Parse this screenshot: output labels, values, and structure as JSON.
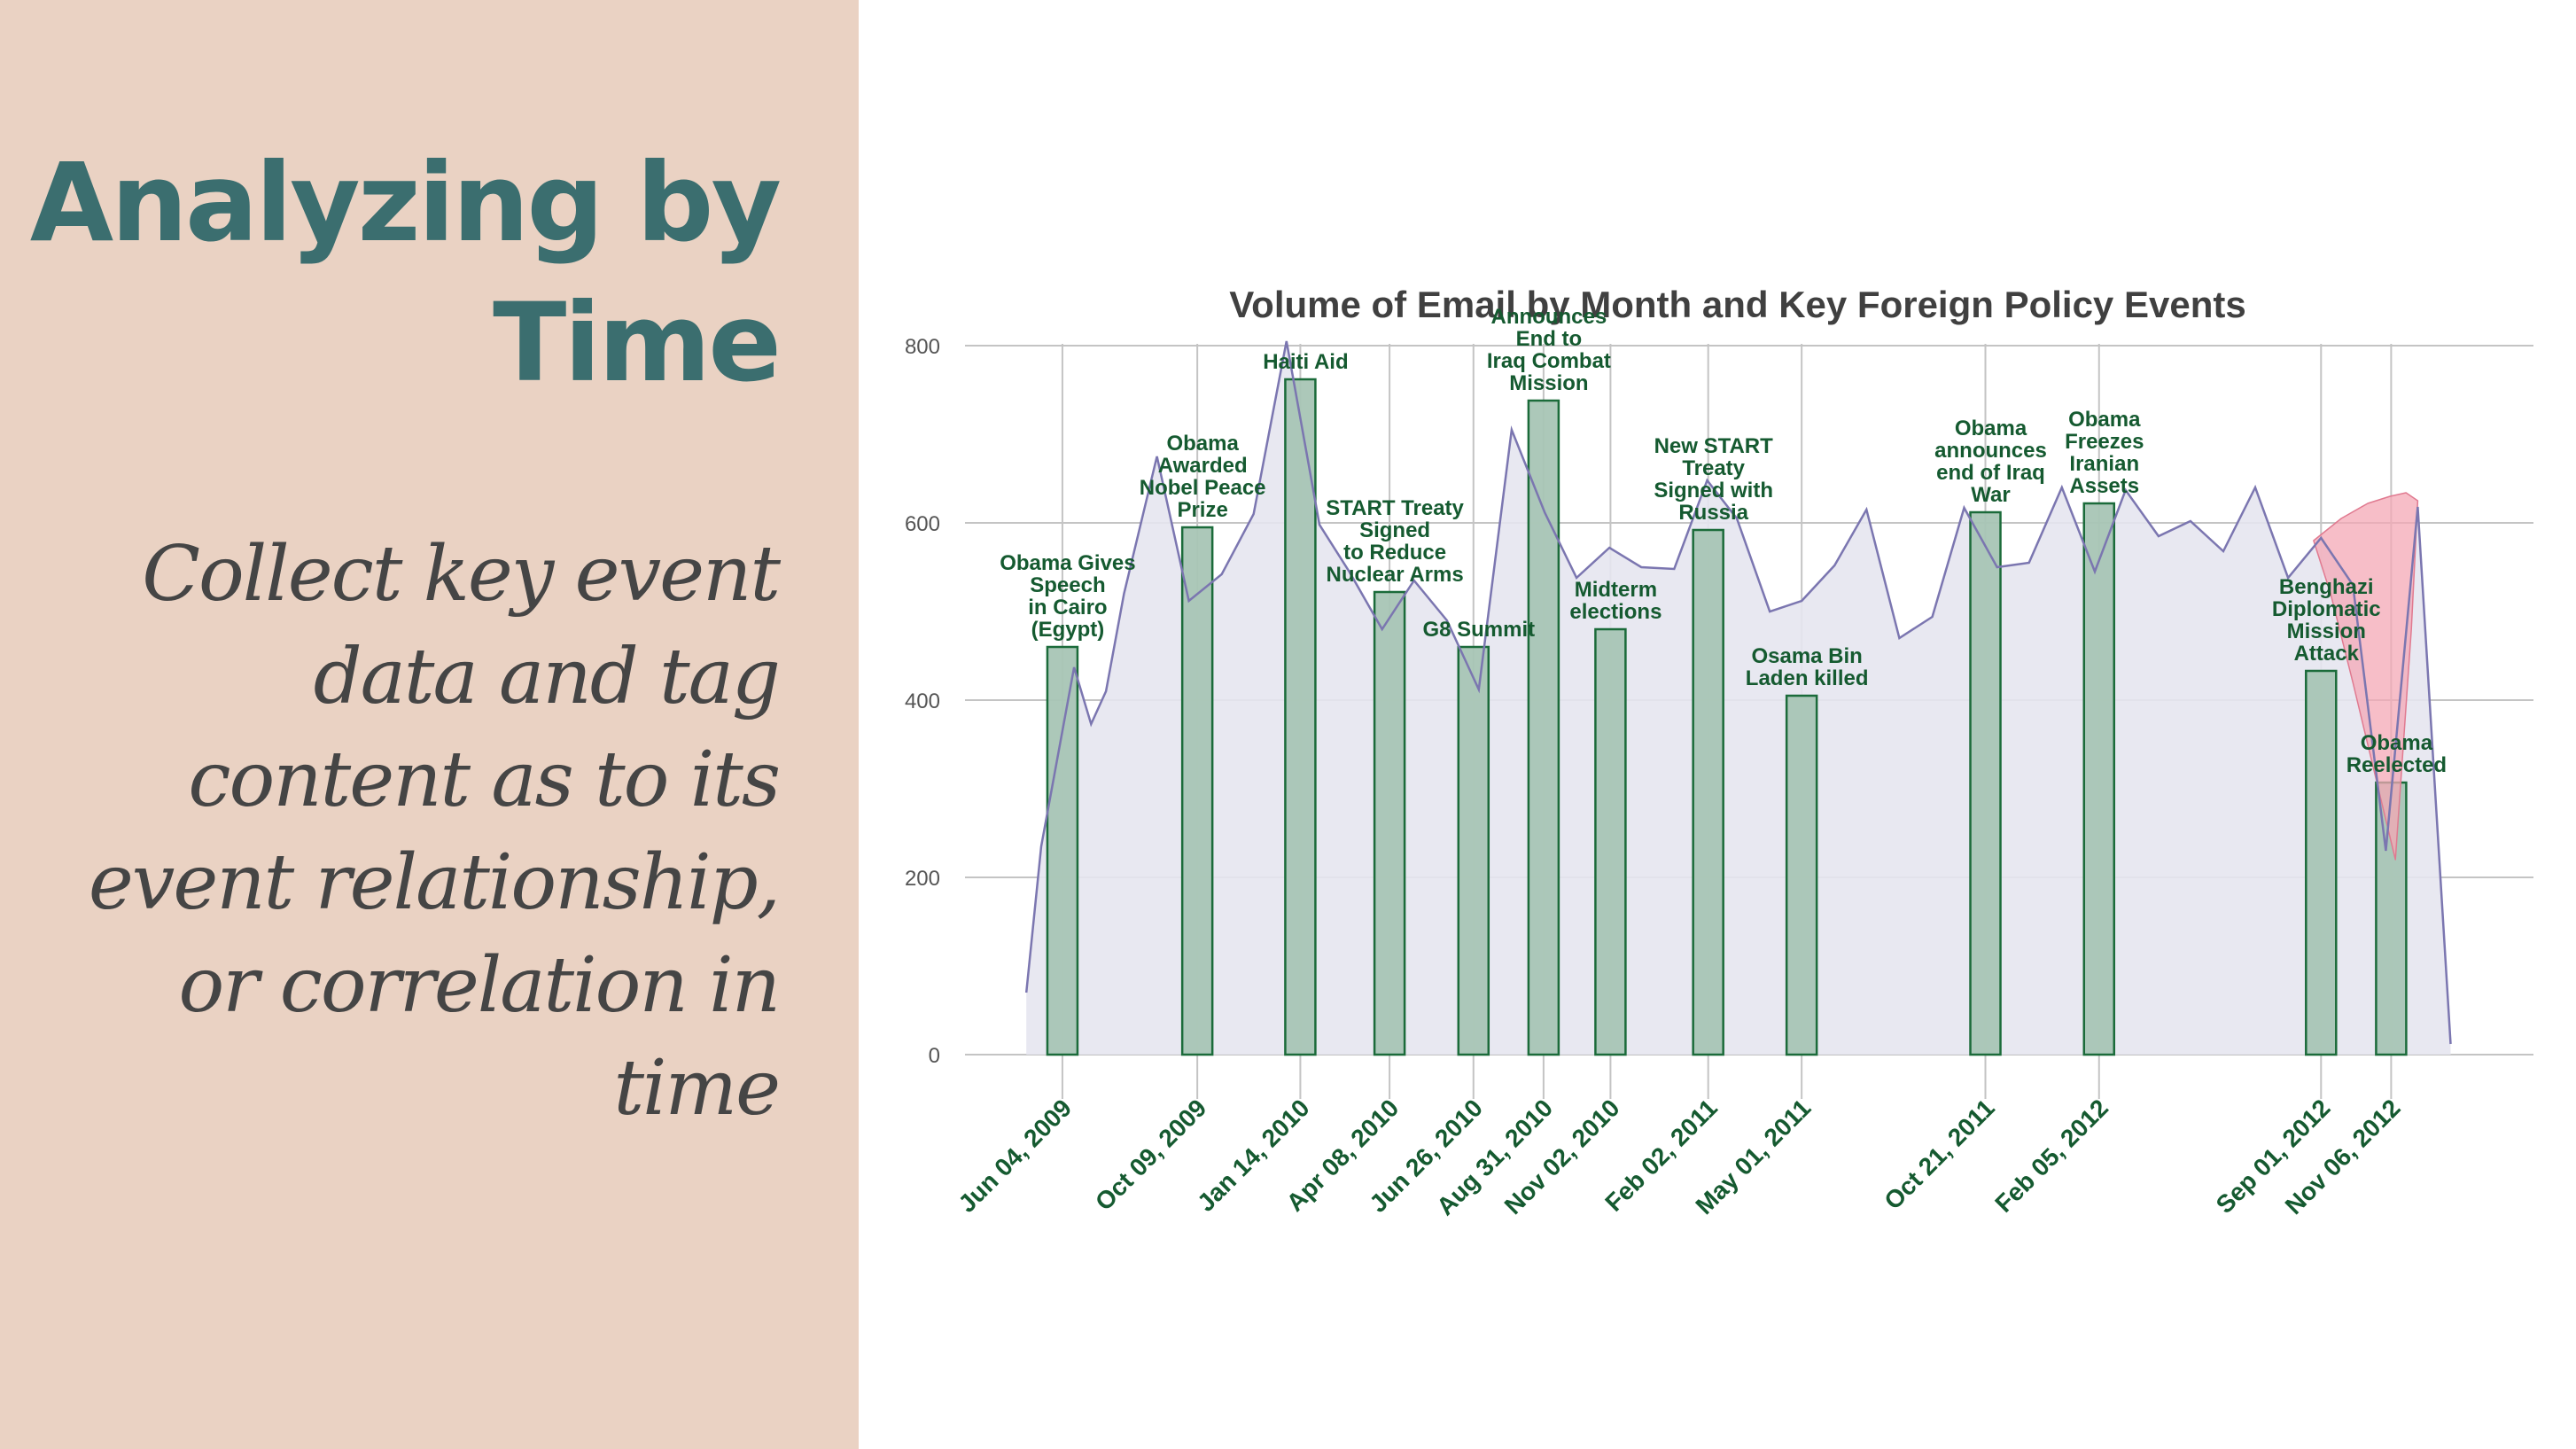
{
  "slide": {
    "title": "Analyzing by Time",
    "body": "Collect key event data and tag content as to its event relationship, or correlation in time"
  },
  "colors": {
    "left_panel_bg": "#ead2c3",
    "title": "#3b6e6f",
    "body_text": "#454545",
    "chart_title": "#404040",
    "event_label": "#155a30",
    "bar_fill": "#a8c5b5",
    "bar_stroke": "#1b6b3a",
    "area_fill": "#e6e6f0",
    "line": "#7b76b0",
    "highlight_fill": "#f4a8b5",
    "grid": "#c4c4c4"
  },
  "chart_data": {
    "type": "bar",
    "title": "Volume of Email by Month and Key Foreign Policy Events",
    "xlabel": "",
    "ylabel": "",
    "ylim": [
      0,
      800
    ],
    "yticks": [
      0,
      200,
      400,
      600,
      800
    ],
    "xlim": [
      "2009-04-15",
      "2013-03-20"
    ],
    "grid": true,
    "events": [
      {
        "date": "2009-06-04",
        "tick_label": "Jun 04, 2009",
        "label": "Obama Gives\nSpeech\nin Cairo\n(Egypt)",
        "value": 460
      },
      {
        "date": "2009-10-09",
        "tick_label": "Oct 09, 2009",
        "label": "Obama\nAwarded\nNobel Peace\nPrize",
        "value": 595
      },
      {
        "date": "2010-01-14",
        "tick_label": "Jan 14, 2010",
        "label": "Haiti Aid",
        "value": 762
      },
      {
        "date": "2010-04-08",
        "tick_label": "Apr 08, 2010",
        "label": "START Treaty\nSigned\nto Reduce\nNuclear Arms",
        "value": 522
      },
      {
        "date": "2010-06-26",
        "tick_label": "Jun 26, 2010",
        "label": "G8 Summit",
        "value": 460
      },
      {
        "date": "2010-08-31",
        "tick_label": "Aug 31, 2010",
        "label": "Announces\nEnd to\nIraq Combat\nMission",
        "value": 738
      },
      {
        "date": "2010-11-02",
        "tick_label": "Nov 02, 2010",
        "label": "Midterm\nelections",
        "value": 480
      },
      {
        "date": "2011-02-02",
        "tick_label": "Feb 02, 2011",
        "label": "New START\nTreaty\nSigned with\nRussia",
        "value": 592
      },
      {
        "date": "2011-05-01",
        "tick_label": "May 01, 2011",
        "label": "Osama Bin\nLaden killed",
        "value": 405
      },
      {
        "date": "2011-10-21",
        "tick_label": "Oct 21, 2011",
        "label": "Obama\nannounces\nend of Iraq\nWar",
        "value": 612
      },
      {
        "date": "2012-02-05",
        "tick_label": "Feb 05, 2012",
        "label": "Obama\nFreezes\nIranian\nAssets",
        "value": 622
      },
      {
        "date": "2012-09-01",
        "tick_label": "Sep 01, 2012",
        "label": "Benghazi\nDiplomatic\nMission\nAttack",
        "value": 433
      },
      {
        "date": "2012-11-06",
        "tick_label": "Nov 06, 2012",
        "label": "Obama\nReelected",
        "value": 307
      }
    ],
    "monthly_volume": {
      "x": [
        "2009-05-01",
        "2009-05-15",
        "2009-06-15",
        "2009-07-01",
        "2009-07-15",
        "2009-08-01",
        "2009-09-01",
        "2009-10-01",
        "2009-11-01",
        "2009-12-01",
        "2010-01-01",
        "2010-02-01",
        "2010-03-01",
        "2010-04-01",
        "2010-05-01",
        "2010-06-01",
        "2010-07-01",
        "2010-08-01",
        "2010-09-01",
        "2010-10-01",
        "2010-11-01",
        "2010-12-01",
        "2011-01-01",
        "2011-02-01",
        "2011-03-01",
        "2011-04-01",
        "2011-05-01",
        "2011-06-01",
        "2011-07-01",
        "2011-08-01",
        "2011-09-01",
        "2011-10-01",
        "2011-11-01",
        "2011-12-01",
        "2012-01-01",
        "2012-02-01",
        "2012-03-01",
        "2012-04-01",
        "2012-05-01",
        "2012-06-01",
        "2012-07-01",
        "2012-08-01",
        "2012-09-01",
        "2012-10-01",
        "2012-11-01",
        "2012-12-01",
        "2013-01-01"
      ],
      "y": [
        70,
        235,
        437,
        373,
        410,
        520,
        675,
        512,
        542,
        610,
        805,
        598,
        545,
        480,
        535,
        490,
        412,
        705,
        612,
        538,
        572,
        550,
        548,
        648,
        605,
        500,
        512,
        552,
        615,
        470,
        494,
        617,
        550,
        555,
        640,
        545,
        637,
        585,
        602,
        568,
        640,
        538,
        583,
        530,
        230,
        618,
        12
      ]
    },
    "highlight": {
      "x": [
        "2012-08-25",
        "2012-09-20",
        "2012-10-15",
        "2012-11-05",
        "2012-11-20",
        "2012-12-01",
        "2012-11-25",
        "2012-11-10",
        "2012-10-25",
        "2012-10-01",
        "2012-09-10"
      ],
      "y": [
        580,
        605,
        622,
        630,
        634,
        625,
        480,
        220,
        300,
        420,
        520
      ]
    }
  }
}
